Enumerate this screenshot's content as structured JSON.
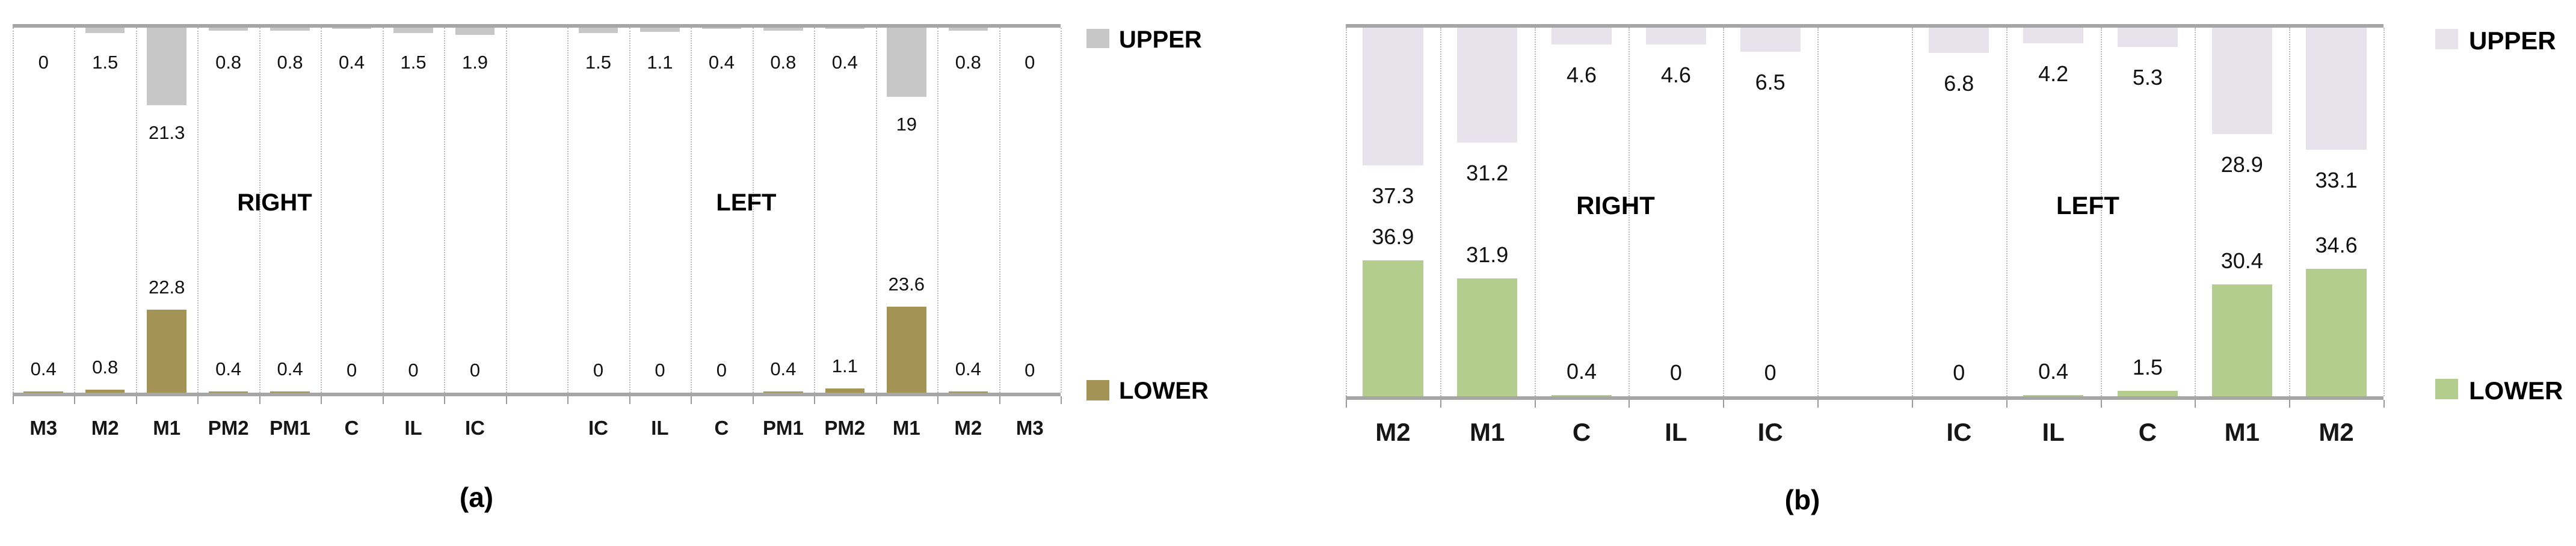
{
  "chart_data": [
    {
      "id": "a",
      "type": "bar",
      "caption": "(a)",
      "orientation": "dual-baseline (UPPER hangs from top axis, LOWER rises from bottom axis)",
      "group_labels": [
        "RIGHT",
        "LEFT"
      ],
      "categories": [
        "M3",
        "M2",
        "M1",
        "PM2",
        "PM1",
        "C",
        "IL",
        "IC",
        "",
        "IC",
        "IL",
        "C",
        "PM1",
        "PM2",
        "M1",
        "M2",
        "M3"
      ],
      "series": [
        {
          "name": "UPPER",
          "color": "#c7c7c7",
          "values": [
            0,
            1.5,
            21.3,
            0.8,
            0.8,
            0.4,
            1.5,
            1.9,
            null,
            1.5,
            1.1,
            0.4,
            0.8,
            0.4,
            19,
            0.8,
            0
          ]
        },
        {
          "name": "LOWER",
          "color": "#a39455",
          "values": [
            0.4,
            0.8,
            22.8,
            0.4,
            0.4,
            0,
            0,
            0,
            null,
            0,
            0,
            0,
            0.4,
            1.1,
            23.6,
            0.4,
            0
          ]
        }
      ],
      "ylim": [
        0,
        100
      ],
      "grid": "dotted vertical separators per tooth position",
      "legend_position": "right (UPPER top, LOWER bottom)",
      "axis_color": "#a6a6a6",
      "gridline_color": "#b9b9b9"
    },
    {
      "id": "b",
      "type": "bar",
      "caption": "(b)",
      "orientation": "dual-baseline (UPPER hangs from top axis, LOWER rises from bottom axis)",
      "group_labels": [
        "RIGHT",
        "LEFT"
      ],
      "categories": [
        "M2",
        "M1",
        "C",
        "IL",
        "IC",
        "",
        "IC",
        "IL",
        "C",
        "M1",
        "M2"
      ],
      "series": [
        {
          "name": "UPPER",
          "color": "#e7e2ec",
          "values": [
            37.3,
            31.2,
            4.6,
            4.6,
            6.5,
            null,
            6.8,
            4.2,
            5.3,
            28.9,
            33.1
          ]
        },
        {
          "name": "LOWER",
          "color": "#b2cd8e",
          "values": [
            36.9,
            31.9,
            0.4,
            0,
            0,
            null,
            0,
            0.4,
            1.5,
            30.4,
            34.6
          ]
        }
      ],
      "ylim": [
        0,
        100
      ],
      "grid": "dotted vertical separators per tooth position",
      "legend_position": "right (UPPER top, LOWER bottom)",
      "axis_color": "#a6a6a6",
      "gridline_color": "#b9b9b9"
    }
  ]
}
